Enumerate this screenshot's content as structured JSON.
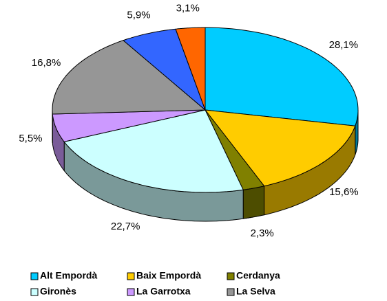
{
  "chart_data": {
    "type": "pie3d",
    "categories": [
      "Alt Empordà",
      "Baix Empordà",
      "Cerdanya",
      "Gironès",
      "La Garrotxa",
      "La Selva",
      null,
      null
    ],
    "values": [
      28.1,
      15.6,
      2.3,
      22.7,
      5.5,
      16.8,
      5.9,
      3.1
    ],
    "value_labels": [
      "28,1%",
      "15,6%",
      "2,3%",
      "22,7%",
      "5,5%",
      "16,8%",
      "5,9%",
      "3,1%"
    ],
    "colors": [
      "#00ccff",
      "#ffcc00",
      "#808000",
      "#ccffff",
      "#cc99ff",
      "#969696",
      "#3366ff",
      "#ff6600"
    ],
    "legend": "bottom"
  }
}
